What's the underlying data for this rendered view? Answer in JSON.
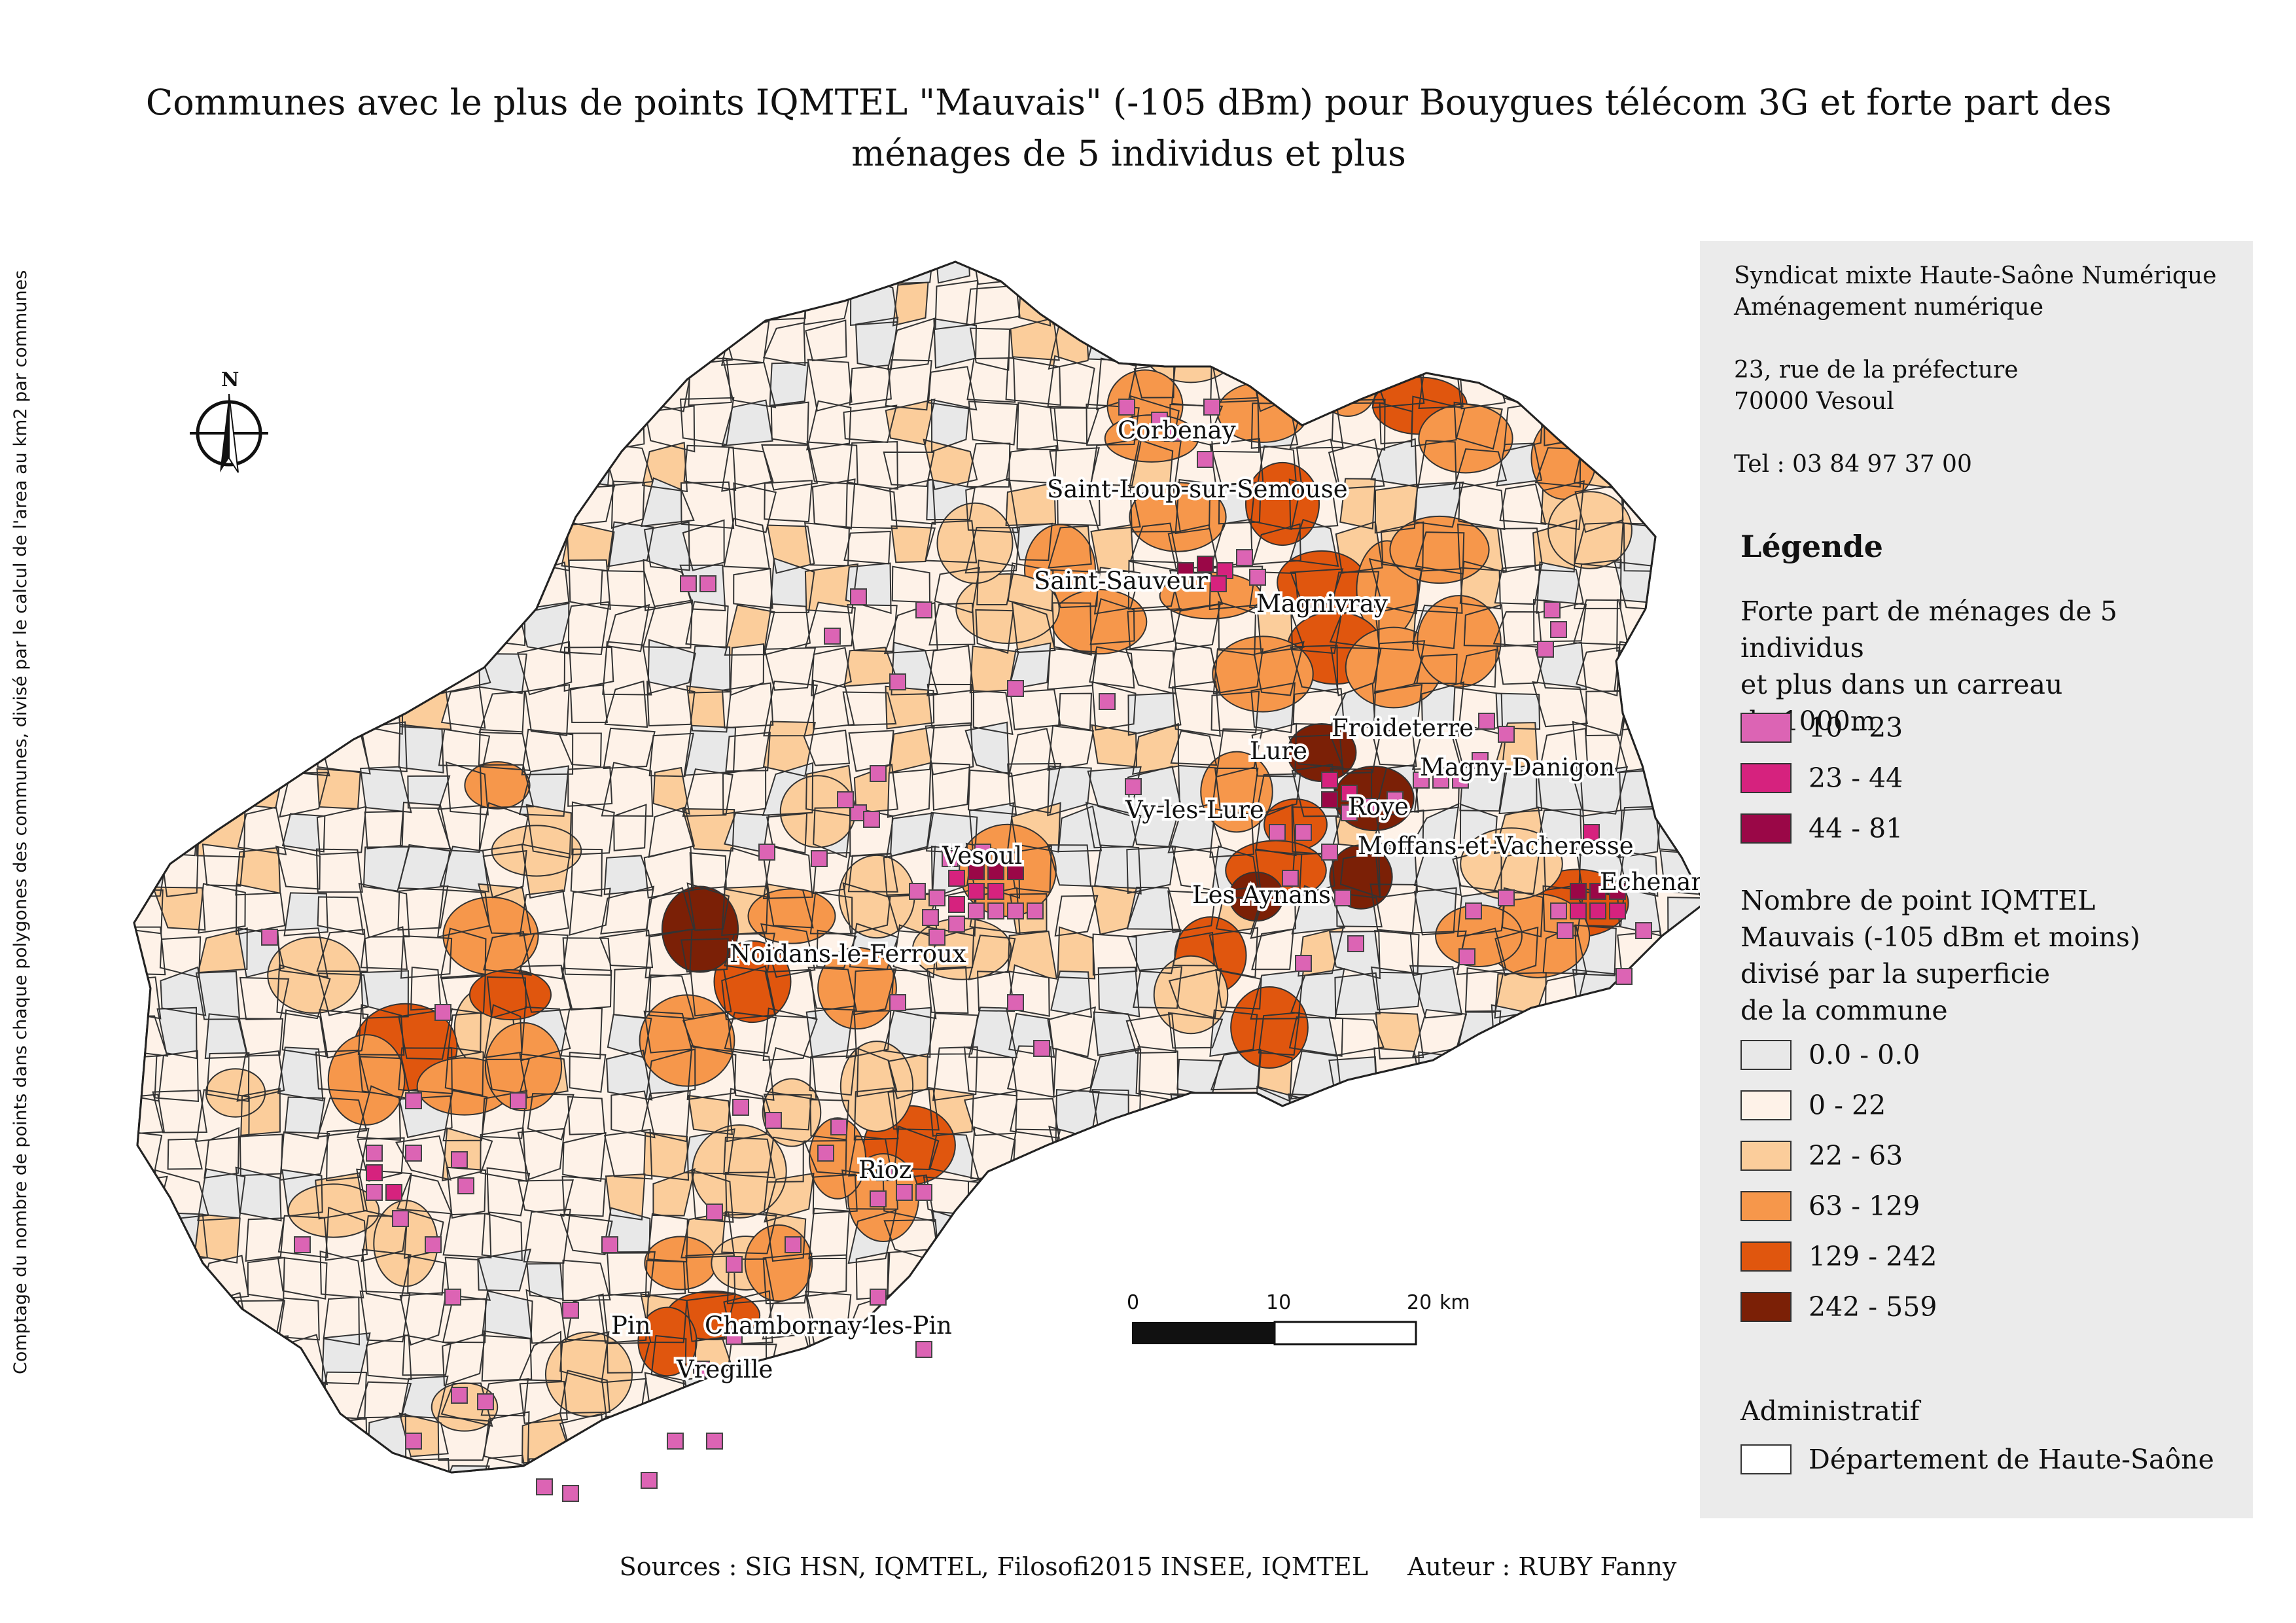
{
  "title": {
    "line1": "Communes avec le plus de points IQMTEL \"Mauvais\" (-105 dBm) pour Bouygues télécom 3G et forte part des",
    "line2": "ménages de 5 individus et plus"
  },
  "side_note": "Comptage du nombre de points dans chaque polygones des communes, divisé par le calcul de l'area au km2 par communes",
  "north_arrow": {
    "label": "N",
    "icon": "north-arrow-icon"
  },
  "scale_bar": {
    "ticks": [
      "0",
      "10",
      "20"
    ],
    "unit": "km"
  },
  "organisation": {
    "line1": "Syndicat mixte Haute-Saône Numérique",
    "line2": "Aménagement numérique",
    "address1": "23, rue de la préfecture",
    "address2": "70000 Vesoul",
    "phone": "Tel : 03 84 97 37 00"
  },
  "legend": {
    "title": "Légende",
    "households": {
      "title_line1": "Forte part de ménages de 5 individus",
      "title_line2": "et plus dans un carreau",
      "title_line3": "de 1000m",
      "classes": [
        {
          "label": "10 - 23",
          "color": "#dc64b4"
        },
        {
          "label": "23 - 44",
          "color": "#d6227e"
        },
        {
          "label": "44 - 81",
          "color": "#9a0747"
        }
      ]
    },
    "iqmtel": {
      "title_line1": "Nombre de point IQMTEL",
      "title_line2": "Mauvais (-105 dBm et moins)",
      "title_line3": "divisé par la superficie",
      "title_line4": "de la commune",
      "classes": [
        {
          "label": "0.0 - 0.0",
          "color": "#e8e8e8"
        },
        {
          "label": "0 - 22",
          "color": "#fef2e8"
        },
        {
          "label": "22 - 63",
          "color": "#fbcd9b"
        },
        {
          "label": "63 - 129",
          "color": "#f6974b"
        },
        {
          "label": "129 - 242",
          "color": "#e0560e"
        },
        {
          "label": "242 - 559",
          "color": "#7b2006"
        }
      ]
    },
    "admin": {
      "title": "Administratif",
      "item": "Département de Haute-Saône"
    }
  },
  "place_labels": [
    "Corbenay",
    "Saint-Loup-sur-Semouse",
    "Saint-Sauveur",
    "Magnivray",
    "Froideterre",
    "Lure",
    "Magny-Danigon",
    "Roye",
    "Vy-les-Lure",
    "Moffans-et-Vacheresse",
    "Vesoul",
    "Les Aynans",
    "Echenans-sous-Mont-Vaudois",
    "Noidans-le-Ferroux",
    "Rioz",
    "Pin",
    "Chambornay-les-Pin",
    "Vregille"
  ],
  "sources": "Sources : SIG HSN, IQMTEL, Filosofi2015 INSEE, IQMTEL",
  "author": "Auteur : RUBY Fanny"
}
